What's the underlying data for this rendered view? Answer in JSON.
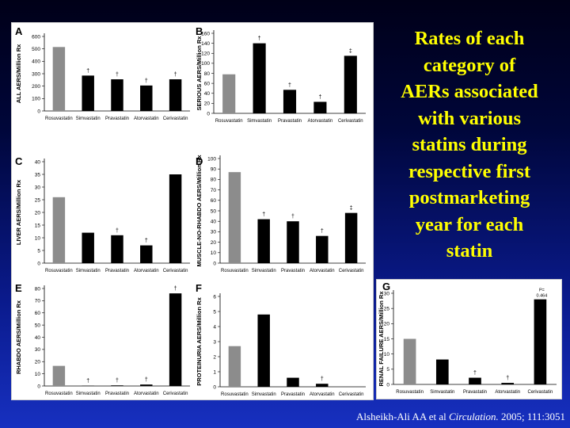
{
  "slide": {
    "title_lines": [
      "Rates of each",
      "category of",
      "AERs associated",
      "with various",
      "statins during",
      "respective first",
      "postmarketing",
      "year for each",
      "statin"
    ],
    "citation": {
      "authors": "Alsheikh-Ali AA et al ",
      "journal": "Circulation.",
      "rest": " 2005; 111:3051"
    }
  },
  "colors": {
    "rosuvastatin_bar": "#8c8c8c",
    "other_bar": "#000000",
    "title": "#ffff00"
  },
  "chart_data": [
    {
      "id": "A",
      "type": "bar",
      "letter": "A",
      "ylabel": "ALL AERS/Million Rx",
      "categories": [
        "Rosuvastatin",
        "Simvastatin",
        "Pravastatin",
        "Atorvastatin",
        "Cerivastatin"
      ],
      "values": [
        515,
        285,
        255,
        205,
        255
      ],
      "markers": [
        "",
        "†",
        "†",
        "†",
        "†"
      ],
      "ylim": [
        0,
        600
      ],
      "yticks": [
        0,
        100,
        200,
        300,
        400,
        500,
        600
      ]
    },
    {
      "id": "B",
      "type": "bar",
      "letter": "B",
      "ylabel": "SERIOUS AERS/Million Rx",
      "categories": [
        "Rosuvastatin",
        "Simvastatin",
        "Pravastatin",
        "Atorvastatin",
        "Cerivastatin"
      ],
      "values": [
        78,
        140,
        47,
        23,
        115
      ],
      "markers": [
        "",
        "†",
        "†",
        "†",
        "‡"
      ],
      "ylim": [
        0,
        160
      ],
      "yticks": [
        0,
        20,
        40,
        60,
        80,
        100,
        120,
        140,
        160
      ]
    },
    {
      "id": "C",
      "type": "bar",
      "letter": "C",
      "ylabel": "LIVER AERS/Million Rx",
      "categories": [
        "Rosuvastatin",
        "Simvastatin",
        "Pravastatin",
        "Atorvastatin",
        "Cerivastatin"
      ],
      "values": [
        26,
        12,
        11,
        7,
        35
      ],
      "markers": [
        "",
        "",
        "†",
        "†",
        ""
      ],
      "ylim": [
        0,
        40
      ],
      "yticks": [
        0,
        5,
        10,
        15,
        20,
        25,
        30,
        35,
        40
      ]
    },
    {
      "id": "D",
      "type": "bar",
      "letter": "D",
      "ylabel": "MUSCLE-NO-RHABDO AERS/Million Rx",
      "categories": [
        "Rosuvastatin",
        "Simvastatin",
        "Pravastatin",
        "Atorvastatin",
        "Cerivastatin"
      ],
      "values": [
        87,
        42,
        40,
        26,
        48
      ],
      "markers": [
        "",
        "†",
        "†",
        "†",
        "‡"
      ],
      "ylim": [
        0,
        100
      ],
      "yticks": [
        0,
        10,
        20,
        30,
        40,
        50,
        60,
        70,
        80,
        90,
        100
      ]
    },
    {
      "id": "E",
      "type": "bar",
      "letter": "E",
      "ylabel": "RHABDO AERS/Million Rx",
      "categories": [
        "Rosuvastatin",
        "Simvastatin",
        "Pravastatin",
        "Atorvastatin",
        "Cerivastatin"
      ],
      "values": [
        16.5,
        0.2,
        0.5,
        1.2,
        76
      ],
      "markers": [
        "",
        "†",
        "†",
        "†",
        "†"
      ],
      "ylim": [
        0,
        80
      ],
      "yticks": [
        0,
        10,
        20,
        30,
        40,
        50,
        60,
        70,
        80
      ]
    },
    {
      "id": "F",
      "type": "bar",
      "letter": "F",
      "ylabel": "PROTEINURIA AERS/Million Rx",
      "categories": [
        "Rosuvastatin",
        "Simvastatin",
        "Pravastatin",
        "Atorvastatin",
        "Cerivastatin"
      ],
      "values": [
        2.7,
        4.8,
        0.6,
        0.2,
        0
      ],
      "markers": [
        "",
        "",
        "",
        "†",
        ""
      ],
      "ylim": [
        0,
        6
      ],
      "yticks": [
        0,
        1,
        2,
        3,
        4,
        5,
        6
      ]
    },
    {
      "id": "G",
      "type": "bar",
      "letter": "G",
      "ylabel": "RENAL FAILURE AERS/Million Rx",
      "categories": [
        "Rosuvastatin",
        "Simvastatin",
        "Pravastatin",
        "Atorvastatin",
        "Cerivastatin"
      ],
      "values": [
        15,
        8.2,
        2.2,
        0.5,
        28
      ],
      "markers": [
        "",
        "",
        "†",
        "†",
        "P=0.464"
      ],
      "ylim": [
        0,
        30
      ],
      "yticks": [
        0,
        5,
        10,
        15,
        20,
        25,
        30
      ]
    }
  ]
}
